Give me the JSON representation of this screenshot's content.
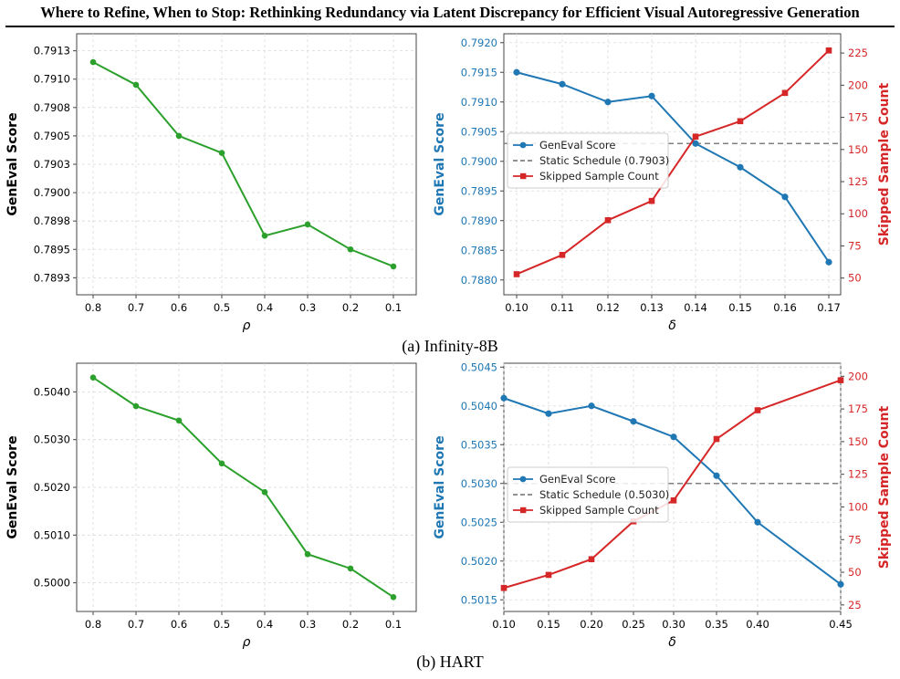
{
  "header": {
    "title": "Where to Refine, When to Stop: Rethinking Redundancy via Latent Discrepancy for Efficient Visual Autoregressive Generation"
  },
  "captions": [
    "(a) Infinity-8B",
    "(b) HART"
  ],
  "colors": {
    "green": "#2ca02c",
    "blue": "#1f77b4",
    "red": "#d62728",
    "gray": "#808080"
  },
  "chart_data": [
    {
      "type": "line",
      "panel": "(a) Infinity-8B left",
      "xlabel": "ρ",
      "ylabel": "GenEval Score",
      "categories": [
        "0.8",
        "0.7",
        "0.6",
        "0.5",
        "0.4",
        "0.3",
        "0.2",
        "0.1"
      ],
      "values": [
        0.79115,
        0.79095,
        0.7905,
        0.79035,
        0.78962,
        0.78972,
        0.7895,
        0.78935
      ],
      "ylim": [
        0.7891,
        0.7914
      ],
      "yticks": [
        "0.7893",
        "0.7895",
        "0.7898",
        "0.7900",
        "0.7903",
        "0.7905",
        "0.7908",
        "0.7910",
        "0.7913"
      ],
      "ytick_values": [
        0.78925,
        0.7895,
        0.78975,
        0.79,
        0.79025,
        0.7905,
        0.79075,
        0.791,
        0.79125
      ],
      "grid": true
    },
    {
      "type": "line",
      "panel": "(a) Infinity-8B right",
      "xlabel": "δ",
      "ylabel": "GenEval Score",
      "y2label": "Skipped Sample Count",
      "categories": [
        "0.10",
        "0.11",
        "0.12",
        "0.13",
        "0.14",
        "0.15",
        "0.16",
        "0.17"
      ],
      "series": [
        {
          "name": "GenEval Score",
          "axis": "left",
          "values": [
            0.7915,
            0.7913,
            0.791,
            0.7911,
            0.7903,
            0.7899,
            0.7894,
            0.7883
          ]
        },
        {
          "name": "Skipped Sample Count",
          "axis": "right",
          "values": [
            53,
            68,
            95,
            110,
            160,
            172,
            194,
            227
          ]
        }
      ],
      "reference": {
        "name": "Static Schedule (0.7903)",
        "value": 0.7903
      },
      "legend": [
        "GenEval Score",
        "Static Schedule (0.7903)",
        "Skipped Sample Count"
      ],
      "ylim": [
        0.78775,
        0.79215
      ],
      "yticks": [
        "0.7880",
        "0.7885",
        "0.7890",
        "0.7895",
        "0.7900",
        "0.7905",
        "0.7910",
        "0.7915",
        "0.7920"
      ],
      "y2lim": [
        37,
        240
      ],
      "y2ticks": [
        "50",
        "75",
        "100",
        "125",
        "150",
        "175",
        "200",
        "225"
      ],
      "legend_position": "center-left",
      "grid": true
    },
    {
      "type": "line",
      "panel": "(b) HART left",
      "xlabel": "ρ",
      "ylabel": "GenEval Score",
      "categories": [
        "0.8",
        "0.7",
        "0.6",
        "0.5",
        "0.4",
        "0.3",
        "0.2",
        "0.1"
      ],
      "values": [
        0.5043,
        0.5037,
        0.5034,
        0.5025,
        0.5019,
        0.5006,
        0.5003,
        0.4997
      ],
      "ylim": [
        0.4994,
        0.5046
      ],
      "yticks": [
        "0.5000",
        "0.5010",
        "0.5020",
        "0.5030",
        "0.5040"
      ],
      "grid": true
    },
    {
      "type": "line",
      "panel": "(b) HART right",
      "xlabel": "δ",
      "ylabel": "GenEval Score",
      "y2label": "Skipped Sample Count",
      "categories": [
        "0.10",
        "0.15",
        "0.20",
        "0.25",
        "0.30",
        "0.35",
        "0.40",
        "0.45"
      ],
      "series": [
        {
          "name": "GenEval Score",
          "axis": "left",
          "values": [
            0.5041,
            0.5039,
            0.504,
            0.5038,
            0.5036,
            0.5031,
            0.5025,
            0.5017
          ]
        },
        {
          "name": "Skipped Sample Count",
          "axis": "right",
          "values": [
            38,
            48,
            60,
            89,
            105,
            152,
            174,
            197
          ]
        }
      ],
      "reference": {
        "name": "Static Schedule (0.5030)",
        "value": 0.503
      },
      "legend": [
        "GenEval Score",
        "Static Schedule (0.5030)",
        "Skipped Sample Count"
      ],
      "ylim": [
        0.50135,
        0.50455
      ],
      "yticks": [
        "0.5015",
        "0.5020",
        "0.5025",
        "0.5030",
        "0.5035",
        "0.5040",
        "0.5045"
      ],
      "y2lim": [
        20,
        210
      ],
      "y2ticks": [
        "25",
        "50",
        "75",
        "100",
        "125",
        "150",
        "175",
        "200"
      ],
      "legend_position": "center-left",
      "grid": true
    }
  ]
}
